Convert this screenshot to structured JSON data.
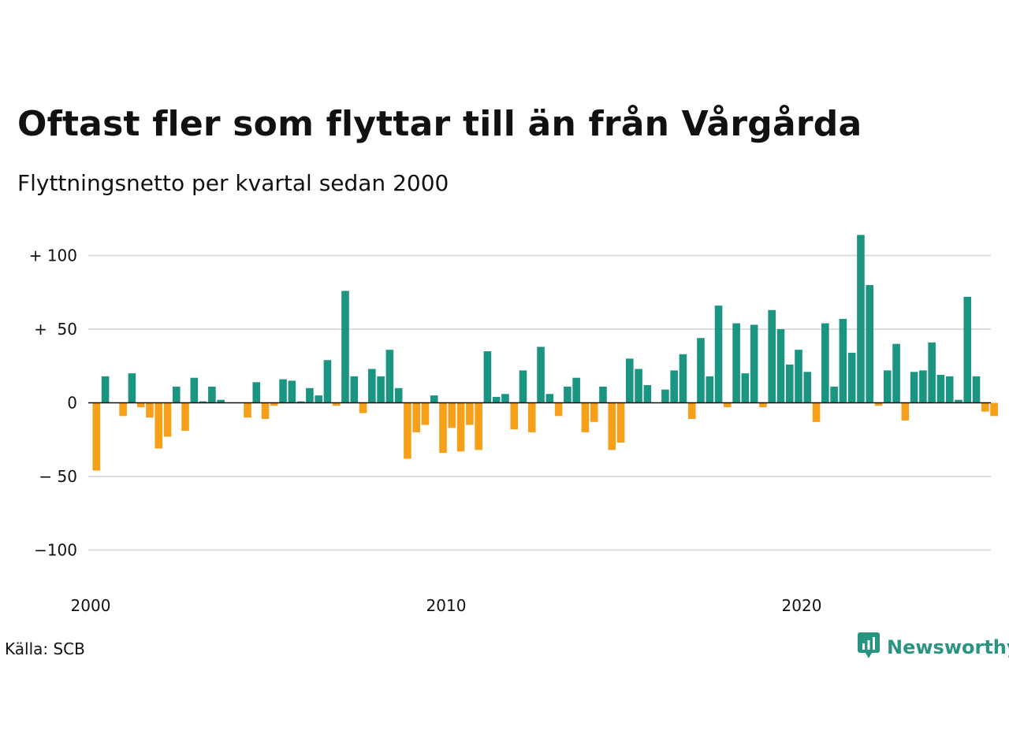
{
  "title": "Oftast fler som flyttar till än från Vårgårda",
  "subtitle": "Flyttningsnetto per kvartal sedan 2000",
  "source": "Källa: SCB",
  "brand": {
    "name": "Newsworthy",
    "icon": "newsworthy-logo-icon"
  },
  "colors": {
    "positive": "#1c9482",
    "negative": "#f6a01a",
    "grid": "#dddddd",
    "zero": "#111111",
    "brand": "#2a9482"
  },
  "chart_data": {
    "type": "bar",
    "title": "Oftast fler som flyttar till än från Vårgårda",
    "subtitle": "Flyttningsnetto per kvartal sedan 2000",
    "xlabel": "",
    "ylabel": "",
    "x_start": 2000,
    "x_ticks": [
      {
        "value": 2000,
        "label": "2000"
      },
      {
        "value": 2010,
        "label": "2010"
      },
      {
        "value": 2020,
        "label": "2020"
      }
    ],
    "y_ticks": [
      {
        "value": 100,
        "label": "+ 100"
      },
      {
        "value": 50,
        "label": "+  50"
      },
      {
        "value": 0,
        "label": "0"
      },
      {
        "value": -50,
        "label": "− 50"
      },
      {
        "value": -100,
        "label": "−100"
      }
    ],
    "ylim": [
      -120,
      120
    ],
    "grid": true,
    "values": [
      -46,
      18,
      0,
      -9,
      20,
      -3,
      -10,
      -31,
      -23,
      11,
      -19,
      17,
      1,
      11,
      2,
      0,
      0,
      -10,
      14,
      -11,
      -2,
      16,
      15,
      1,
      10,
      5,
      29,
      -2,
      76,
      18,
      -7,
      23,
      18,
      36,
      10,
      -38,
      -20,
      -15,
      5,
      -34,
      -17,
      -33,
      -15,
      -32,
      35,
      4,
      6,
      -18,
      22,
      -20,
      38,
      6,
      -9,
      11,
      17,
      -20,
      -13,
      11,
      -32,
      -27,
      30,
      23,
      12,
      0,
      9,
      22,
      33,
      -11,
      44,
      18,
      66,
      -3,
      54,
      20,
      53,
      -3,
      63,
      50,
      26,
      36,
      21,
      -13,
      54,
      11,
      57,
      34,
      114,
      80,
      -2,
      22,
      40,
      -12,
      21,
      22,
      41,
      19,
      18,
      2,
      72,
      18,
      -6,
      -9
    ]
  }
}
